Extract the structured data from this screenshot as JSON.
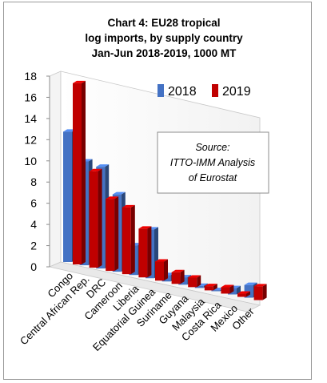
{
  "chart_data": {
    "type": "bar",
    "title_lines": [
      "Chart 4: EU28 tropical",
      "log imports, by supply country",
      "Jan-Jun  2018-2019, 1000 MT"
    ],
    "categories": [
      "Congo",
      "Central African Rep.",
      "DRC",
      "Cameroon",
      "Liberia",
      "Equatorial Guinea",
      "Suriname",
      "Guyana",
      "Malaysia",
      "Costa Rica",
      "Mexico",
      "Other"
    ],
    "series": [
      {
        "name": "2018",
        "color": "#4472C4",
        "values": [
          12.3,
          9.8,
          9.6,
          7.3,
          2.8,
          4.6,
          0.6,
          0.7,
          0.2,
          0.1,
          0.6,
          1.2
        ]
      },
      {
        "name": "2019",
        "color": "#C00000",
        "values": [
          17.1,
          9.1,
          6.8,
          6.3,
          4.6,
          1.8,
          1.1,
          0.9,
          0.4,
          0.6,
          0.3,
          1.3
        ]
      }
    ],
    "ylim": [
      0,
      18
    ],
    "yticks": [
      "0",
      "2",
      "4",
      "6",
      "8",
      "10",
      "12",
      "14",
      "16",
      "18"
    ],
    "legend_position": "top-right",
    "grid": false,
    "annotation_lines": [
      "Source:",
      "ITTO-IMM Analysis",
      "of Eurostat"
    ]
  }
}
